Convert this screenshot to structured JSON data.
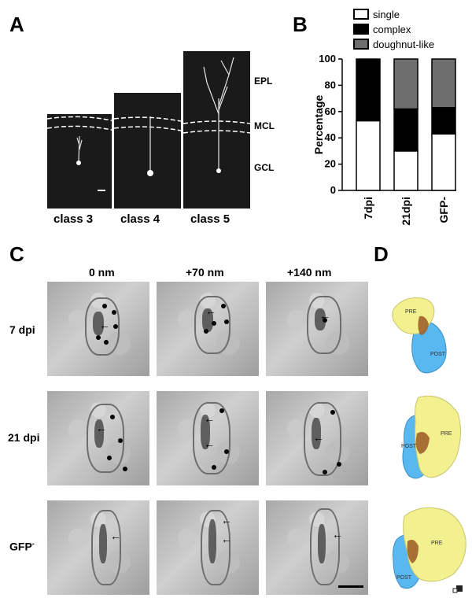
{
  "panels": {
    "A": {
      "letter": "A",
      "classes": [
        "class 3",
        "class 4",
        "class 5"
      ],
      "layers": [
        "EPL",
        "MCL",
        "GCL"
      ]
    },
    "B": {
      "letter": "B"
    },
    "C": {
      "letter": "C",
      "columns": [
        "0 nm",
        "+70 nm",
        "+140 nm"
      ],
      "rows": [
        "7 dpi",
        "21 dpi",
        "GFP"
      ],
      "gfp_superscript": "-"
    },
    "D": {
      "letter": "D",
      "labels": {
        "pre": "PRE",
        "post": "POST"
      }
    }
  },
  "colors": {
    "single": "#ffffff",
    "complex": "#000000",
    "doughnut": "#6e6e6e",
    "pre": "#f3f08f",
    "post": "#59b8ef",
    "psd": "#a0622a"
  },
  "chart_data": {
    "type": "bar",
    "stacked": true,
    "categories": [
      "7dpi",
      "21dpi",
      "GFP-"
    ],
    "series": [
      {
        "name": "single",
        "values": [
          53,
          30,
          43
        ]
      },
      {
        "name": "complex",
        "values": [
          47,
          32,
          20
        ]
      },
      {
        "name": "doughnut-like",
        "values": [
          0,
          38,
          37
        ]
      }
    ],
    "ylabel": "Percentage",
    "ylim": [
      0,
      100
    ],
    "yticks": [
      0,
      20,
      40,
      60,
      80,
      100
    ],
    "legend": "top"
  }
}
